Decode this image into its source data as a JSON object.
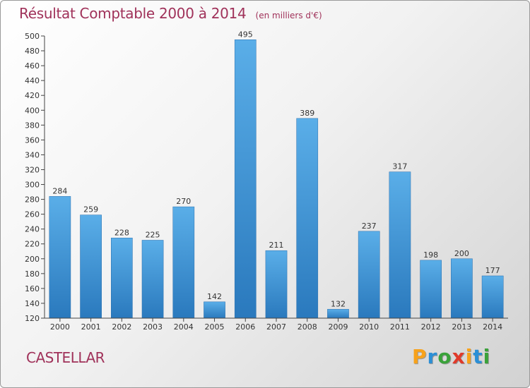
{
  "chart_data": {
    "type": "bar",
    "title": "Résultat Comptable 2000 à 2014",
    "subtitle": "(en milliers d'€)",
    "categories": [
      "2000",
      "2001",
      "2002",
      "2003",
      "2004",
      "2005",
      "2006",
      "2007",
      "2008",
      "2009",
      "2010",
      "2011",
      "2012",
      "2013",
      "2014"
    ],
    "values": [
      284,
      259,
      228,
      225,
      270,
      142,
      495,
      211,
      389,
      132,
      237,
      317,
      198,
      200,
      177
    ],
    "ylim": [
      120,
      500
    ],
    "ytick_step": 20,
    "grid": false,
    "bar_color": "#3a8fd6",
    "xlabel": "",
    "ylabel": ""
  },
  "commune": "CASTELLAR",
  "brand": {
    "letters": [
      "P",
      "r",
      "o",
      "x",
      "i",
      "t",
      "i"
    ],
    "colors": [
      "#f7a21b",
      "#2b8fd6",
      "#3aa23a",
      "#e03a2a",
      "#f7a21b",
      "#2b8fd6",
      "#3aa23a"
    ]
  },
  "colors": {
    "accent": "#a0325a"
  }
}
